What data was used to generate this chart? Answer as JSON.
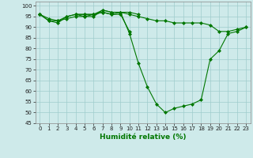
{
  "xlabel": "Humidité relative (%)",
  "x": [
    0,
    1,
    2,
    3,
    4,
    5,
    6,
    7,
    8,
    9,
    10,
    11,
    12,
    13,
    14,
    15,
    16,
    17,
    18,
    19,
    20,
    21,
    22,
    23
  ],
  "line1": [
    96,
    93,
    92,
    95,
    96,
    95,
    95,
    98,
    97,
    97,
    87,
    73,
    62,
    54,
    50,
    52,
    53,
    54,
    56,
    75,
    79,
    87,
    88,
    90
  ],
  "line2": [
    96,
    93,
    93,
    95,
    96,
    96,
    96,
    97,
    96,
    97,
    96,
    95,
    94,
    93,
    93,
    92,
    92,
    92,
    92,
    91,
    88,
    88,
    89,
    90
  ],
  "line3": [
    96,
    94,
    93,
    94,
    95,
    95,
    96,
    97,
    96,
    96,
    88,
    null,
    null,
    null,
    null,
    null,
    null,
    null,
    null,
    null,
    null,
    null,
    null,
    null
  ],
  "line4": [
    96,
    null,
    null,
    null,
    96,
    96,
    96,
    98,
    97,
    97,
    97,
    96,
    null,
    null,
    null,
    null,
    null,
    null,
    null,
    null,
    null,
    null,
    null,
    null
  ],
  "bg_color": "#ceeaea",
  "grid_color": "#a0cccc",
  "line_color": "#007700",
  "marker": "D",
  "marker_size": 2.0,
  "line_width": 0.8,
  "ylim": [
    45,
    102
  ],
  "yticks": [
    45,
    50,
    55,
    60,
    65,
    70,
    75,
    80,
    85,
    90,
    95,
    100
  ],
  "xlim": [
    -0.5,
    23.5
  ],
  "xlabel_fontsize": 6.5,
  "tick_fontsize": 5.0
}
